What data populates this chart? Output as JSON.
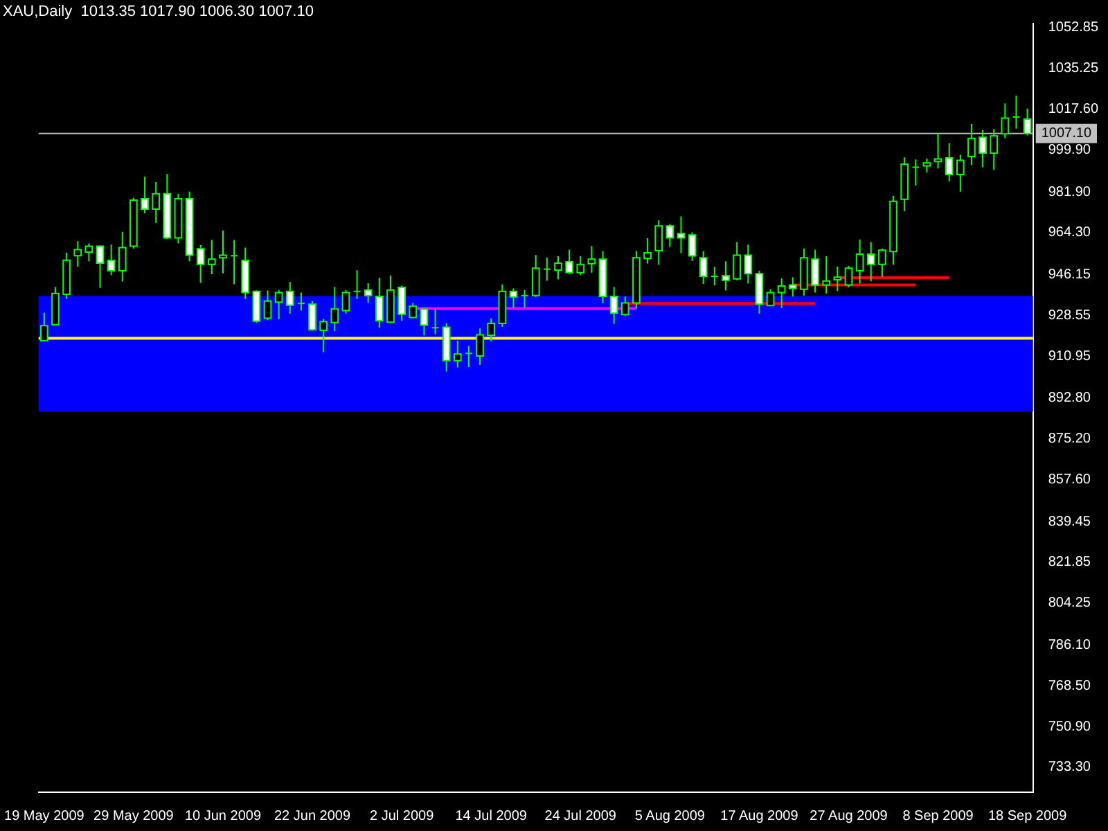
{
  "chart_data": {
    "type": "candlestick",
    "title": "XAU,Daily  1013.35 1017.90 1006.30 1007.10",
    "color": "#00ff00",
    "colors": [
      "#000000",
      "#000000",
      "#000000",
      "#000000",
      "#000000",
      "#ffffff",
      "#ffffff",
      "#000000",
      "#000000",
      "#ffffff",
      "#000000",
      "#ffffff",
      "#000000",
      "#ffffff",
      "#ffffff",
      "#000000",
      "#000000",
      "#00ff00",
      "#ffffff",
      "#ffffff",
      "#000000",
      "#000000",
      "#ffffff",
      "#00ff00",
      "#ffffff",
      "#000000",
      "#000000",
      "#000000",
      "#00ff00",
      "#ffffff",
      "#ffffff",
      "#000000",
      "#ffffff",
      "#000000",
      "#ffffff",
      "#00ff00",
      "#ffffff",
      "#000000",
      "#00ff00",
      "#000000",
      "#000000",
      "#000000",
      "#ffffff",
      "#00ff00",
      "#000000",
      "#00ff00",
      "#000000",
      "#ffffff",
      "#000000",
      "#000000",
      "#ffffff",
      "#ffffff",
      "#000000",
      "#000000",
      "#000000",
      "#000000",
      "#ffffff",
      "#ffffff",
      "#ffffff",
      "#ffffff",
      "#00ff00",
      "#ffffff",
      "#000000",
      "#ffffff",
      "#ffffff",
      "#000000",
      "#000000",
      "#ffffff",
      "#000000",
      "#ffffff",
      "#000000",
      "#000000",
      "#000000",
      "#000000",
      "#ffffff",
      "#000000",
      "#000000",
      "#000000",
      "#00ff00",
      "#000000",
      "#000000",
      "#ffffff",
      "#000000",
      "#000000",
      "#ffffff",
      "#000000",
      "#000000",
      "#00ff00",
      "#ffffff"
    ],
    "categories": [
      "19 May 2009",
      null,
      null,
      null,
      null,
      null,
      null,
      null,
      "29 May 2009",
      null,
      null,
      null,
      null,
      null,
      null,
      null,
      "10 Jun 2009",
      null,
      null,
      null,
      null,
      null,
      null,
      null,
      "22 Jun 2009",
      null,
      null,
      null,
      null,
      null,
      null,
      null,
      "2 Jul 2009",
      null,
      null,
      null,
      null,
      null,
      null,
      null,
      "14 Jul 2009",
      null,
      null,
      null,
      null,
      null,
      null,
      null,
      "24 Jul 2009",
      null,
      null,
      null,
      null,
      null,
      null,
      null,
      "5 Aug 2009",
      null,
      null,
      null,
      null,
      null,
      null,
      null,
      "17 Aug 2009",
      null,
      null,
      null,
      null,
      null,
      null,
      null,
      "27 Aug 2009",
      null,
      null,
      null,
      null,
      null,
      null,
      null,
      "8 Sep 2009",
      null,
      null,
      null,
      null,
      null,
      null,
      null,
      "18 Sep 2009"
    ],
    "ohlc": [
      [
        917.6,
        929.7,
        917.5,
        924.1
      ],
      [
        924.5,
        940.8,
        924.5,
        938.0
      ],
      [
        937.6,
        955.6,
        935.6,
        952.4
      ],
      [
        954.3,
        960.6,
        949.5,
        956.9
      ],
      [
        955.9,
        959.6,
        951.9,
        958.4
      ],
      [
        958.4,
        958.7,
        940.4,
        951.1
      ],
      [
        952.3,
        959.1,
        945.9,
        947.8
      ],
      [
        947.8,
        964.6,
        943.2,
        957.8
      ],
      [
        958.4,
        979.4,
        957.4,
        978.3
      ],
      [
        978.9,
        988.5,
        972.6,
        974.4
      ],
      [
        974.4,
        986.1,
        968.5,
        981.1
      ],
      [
        981.1,
        989.6,
        961.5,
        962.0
      ],
      [
        962.0,
        981.1,
        959.6,
        978.9
      ],
      [
        978.9,
        982.0,
        951.9,
        954.5
      ],
      [
        957.3,
        958.9,
        942.6,
        950.6
      ],
      [
        950.6,
        961.1,
        946.3,
        952.8
      ],
      [
        953.4,
        965.2,
        946.7,
        954.5
      ],
      [
        954.3,
        961.1,
        942.0,
        954.3
      ],
      [
        952.3,
        957.8,
        935.6,
        938.4
      ],
      [
        938.9,
        939.3,
        925.4,
        926.0
      ],
      [
        927.3,
        939.3,
        926.5,
        934.7
      ],
      [
        934.3,
        939.5,
        926.9,
        938.4
      ],
      [
        938.9,
        943.0,
        929.3,
        932.9
      ],
      [
        933.7,
        938.4,
        930.6,
        933.7
      ],
      [
        933.4,
        934.7,
        921.9,
        922.3
      ],
      [
        922.1,
        926.9,
        912.6,
        925.8
      ],
      [
        925.4,
        940.8,
        921.7,
        931.3
      ],
      [
        930.6,
        939.5,
        929.3,
        938.4
      ],
      [
        938.9,
        948.0,
        935.6,
        938.9
      ],
      [
        939.5,
        942.4,
        934.0,
        937.1
      ],
      [
        936.7,
        944.8,
        923.2,
        926.2
      ],
      [
        925.6,
        945.8,
        925.6,
        939.5
      ],
      [
        940.6,
        941.3,
        926.2,
        929.0
      ],
      [
        927.6,
        933.9,
        927.4,
        932.5
      ],
      [
        931.2,
        931.5,
        919.9,
        924.3
      ],
      [
        923.2,
        931.2,
        920.4,
        923.2
      ],
      [
        923.4,
        925.1,
        904.3,
        909.0
      ],
      [
        909.0,
        917.6,
        906.0,
        911.8
      ],
      [
        912.1,
        915.3,
        906.2,
        912.1
      ],
      [
        911.0,
        922.9,
        907.1,
        920.1
      ],
      [
        919.9,
        927.3,
        917.3,
        925.1
      ],
      [
        925.1,
        941.9,
        923.6,
        938.9
      ],
      [
        938.9,
        940.2,
        931.9,
        936.5
      ],
      [
        937.1,
        939.5,
        931.9,
        937.1
      ],
      [
        937.1,
        954.6,
        936.5,
        948.9
      ],
      [
        948.5,
        953.5,
        943.5,
        948.5
      ],
      [
        948.1,
        954.1,
        944.1,
        951.1
      ],
      [
        951.7,
        956.9,
        946.5,
        947.0
      ],
      [
        947.0,
        954.1,
        945.9,
        950.6
      ],
      [
        950.9,
        958.5,
        947.0,
        952.8
      ],
      [
        952.8,
        956.3,
        933.7,
        936.7
      ],
      [
        936.7,
        940.8,
        924.9,
        929.5
      ],
      [
        928.9,
        936.7,
        928.4,
        933.9
      ],
      [
        933.9,
        956.3,
        931.5,
        953.4
      ],
      [
        953.1,
        961.9,
        950.9,
        955.6
      ],
      [
        956.5,
        969.6,
        950.4,
        967.2
      ],
      [
        967.2,
        968.0,
        958.1,
        962.0
      ],
      [
        963.9,
        971.3,
        955.4,
        962.0
      ],
      [
        963.3,
        964.4,
        952.0,
        954.2
      ],
      [
        953.4,
        956.3,
        942.1,
        945.4
      ],
      [
        945.4,
        949.5,
        941.5,
        945.4
      ],
      [
        945.6,
        951.9,
        939.3,
        943.7
      ],
      [
        944.3,
        960.2,
        943.7,
        954.5
      ],
      [
        954.5,
        959.1,
        942.3,
        946.5
      ],
      [
        946.5,
        947.8,
        929.3,
        933.4
      ],
      [
        932.8,
        939.8,
        932.8,
        938.4
      ],
      [
        938.4,
        944.5,
        931.7,
        941.2
      ],
      [
        941.7,
        945.0,
        936.7,
        940.2
      ],
      [
        939.8,
        957.4,
        937.1,
        953.4
      ],
      [
        952.8,
        956.9,
        938.4,
        941.7
      ],
      [
        941.7,
        954.1,
        938.0,
        943.4
      ],
      [
        943.9,
        949.6,
        939.1,
        945.0
      ],
      [
        941.7,
        950.0,
        940.6,
        948.9
      ],
      [
        947.8,
        961.3,
        942.3,
        955.0
      ],
      [
        955.0,
        960.2,
        943.2,
        950.6
      ],
      [
        950.6,
        957.4,
        945.0,
        956.7
      ],
      [
        956.1,
        980.2,
        950.4,
        977.8
      ],
      [
        978.7,
        996.8,
        973.5,
        993.9
      ],
      [
        992.5,
        995.9,
        984.6,
        992.5
      ],
      [
        993.1,
        996.3,
        990.3,
        994.4
      ],
      [
        995.0,
        1007.3,
        992.0,
        996.1
      ],
      [
        996.6,
        1002.9,
        986.4,
        989.4
      ],
      [
        989.4,
        997.9,
        982.0,
        995.5
      ],
      [
        997.2,
        1011.2,
        993.5,
        1005.0
      ],
      [
        1005.5,
        1008.6,
        992.5,
        998.6
      ],
      [
        998.6,
        1009.0,
        991.4,
        1006.1
      ],
      [
        1007.0,
        1020.1,
        1005.1,
        1013.8
      ],
      [
        1014.2,
        1023.4,
        1009.2,
        1014.2
      ],
      [
        1013.35,
        1017.9,
        1006.3,
        1007.1
      ]
    ],
    "series": [
      {
        "type": "line",
        "color": "#ff00ff",
        "values": [
          null,
          null,
          null,
          null,
          null,
          null,
          null,
          null,
          null,
          null,
          null,
          null,
          null,
          null,
          null,
          null,
          null,
          null,
          null,
          null,
          null,
          null,
          null,
          null,
          null,
          null,
          null,
          null,
          null,
          null,
          null,
          null,
          null,
          931.5,
          null,
          null,
          null,
          null,
          null,
          null,
          null,
          null,
          null,
          null,
          null,
          null,
          null,
          null,
          null,
          null,
          null,
          null,
          null,
          931.5,
          null,
          null,
          null,
          null,
          null,
          null,
          null,
          null,
          null,
          null,
          null,
          null,
          null,
          null,
          null,
          null,
          null,
          null,
          null,
          null,
          null,
          null,
          null,
          null,
          null,
          null,
          null,
          null,
          null,
          null,
          null,
          null,
          null,
          null,
          null
        ]
      },
      {
        "type": "line",
        "color": "#ff0000",
        "values": [
          null,
          null,
          null,
          null,
          null,
          null,
          null,
          null,
          null,
          null,
          null,
          null,
          null,
          null,
          null,
          null,
          null,
          null,
          null,
          null,
          null,
          null,
          null,
          null,
          null,
          null,
          null,
          null,
          null,
          null,
          null,
          null,
          null,
          null,
          null,
          null,
          null,
          null,
          null,
          null,
          null,
          null,
          null,
          null,
          null,
          null,
          null,
          null,
          null,
          null,
          null,
          null,
          933.7,
          null,
          null,
          null,
          null,
          null,
          null,
          null,
          null,
          null,
          null,
          null,
          null,
          null,
          null,
          null,
          null,
          933.7,
          null,
          null,
          null,
          null,
          null,
          null,
          null,
          null,
          null,
          null,
          null,
          null,
          null,
          null,
          null,
          null,
          null,
          null,
          null
        ]
      },
      {
        "type": "line",
        "color": "#ff0000",
        "values": [
          null,
          null,
          null,
          null,
          null,
          null,
          null,
          null,
          null,
          null,
          null,
          null,
          null,
          null,
          null,
          null,
          null,
          null,
          null,
          null,
          null,
          null,
          null,
          null,
          null,
          null,
          null,
          null,
          null,
          null,
          null,
          null,
          null,
          null,
          null,
          null,
          null,
          null,
          null,
          null,
          null,
          null,
          null,
          null,
          null,
          null,
          null,
          null,
          null,
          null,
          null,
          null,
          null,
          null,
          null,
          null,
          null,
          null,
          null,
          null,
          null,
          null,
          null,
          null,
          null,
          null,
          null,
          941.7,
          null,
          null,
          null,
          null,
          null,
          null,
          null,
          null,
          null,
          null,
          941.7,
          null,
          null,
          null,
          null,
          null,
          null,
          null,
          null,
          null,
          null
        ]
      },
      {
        "type": "line",
        "color": "#ff0000",
        "values": [
          null,
          null,
          null,
          null,
          null,
          null,
          null,
          null,
          null,
          null,
          null,
          null,
          null,
          null,
          null,
          null,
          null,
          null,
          null,
          null,
          null,
          null,
          null,
          null,
          null,
          null,
          null,
          null,
          null,
          null,
          null,
          null,
          null,
          null,
          null,
          null,
          null,
          null,
          null,
          null,
          null,
          null,
          null,
          null,
          null,
          null,
          null,
          null,
          null,
          null,
          null,
          null,
          null,
          null,
          null,
          null,
          null,
          null,
          null,
          null,
          null,
          null,
          null,
          null,
          null,
          null,
          null,
          null,
          null,
          null,
          null,
          944.8,
          null,
          null,
          null,
          null,
          null,
          null,
          null,
          null,
          null,
          944.8,
          null,
          null,
          null,
          null,
          null,
          null,
          null
        ]
      }
    ],
    "ylim": [
      722.5,
      1054.5
    ],
    "yticks": [
      {
        "value": 1052.85,
        "label": "1052.85"
      },
      {
        "value": 1035.25,
        "label": "1035.25"
      },
      {
        "value": 1017.6,
        "label": "1017.60"
      },
      {
        "value": 999.9,
        "label": "999.90"
      },
      {
        "value": 981.9,
        "label": "981.90"
      },
      {
        "value": 964.3,
        "label": "964.30"
      },
      {
        "value": 946.15,
        "label": "946.15"
      },
      {
        "value": 928.55,
        "label": "928.55"
      },
      {
        "value": 910.95,
        "label": "910.95"
      },
      {
        "value": 892.8,
        "label": "892.80"
      },
      {
        "value": 875.2,
        "label": "875.20"
      },
      {
        "value": 857.6,
        "label": "857.60"
      },
      {
        "value": 839.45,
        "label": "839.45"
      },
      {
        "value": 821.85,
        "label": "821.85"
      },
      {
        "value": 804.25,
        "label": "804.25"
      },
      {
        "value": 786.1,
        "label": "786.10"
      },
      {
        "value": 768.5,
        "label": "768.50"
      },
      {
        "value": 750.9,
        "label": "750.90"
      },
      {
        "value": 733.3,
        "label": "733.30"
      }
    ],
    "ref_lines": [
      {
        "axis": "y",
        "value": 1007.1,
        "label": "1007.10",
        "color": "#c0c0c0"
      },
      {
        "axis": "y",
        "value": 918.6,
        "color": "#ffff00"
      }
    ],
    "bands": [
      {
        "axis": "y",
        "from": 887.0,
        "to": 936.9,
        "color": "#0000ff"
      }
    ]
  }
}
